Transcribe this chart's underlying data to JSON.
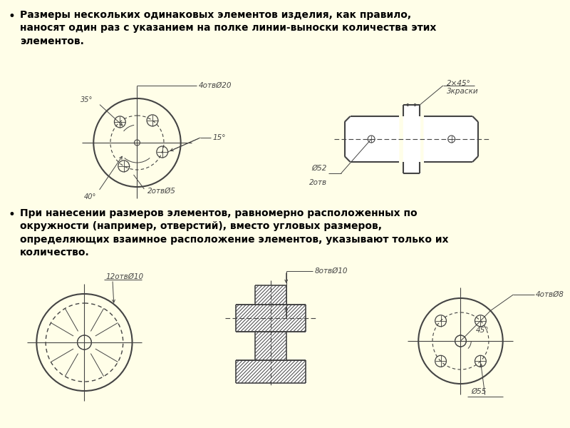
{
  "bg_color": "#fffee8",
  "text_color": "#000000",
  "drawing_color": "#444444",
  "bullet1": "Размеры нескольких одинаковых элементов изделия, как правило,\nнаносят один раз с указанием на полке линии-выноски количества этих\nэлементов.",
  "bullet2": "При нанесении размеров элементов, равномерно расположенных по\nокружности (например, отверстий), вместо угловых размеров,\nопределяющих взаимное расположение элементов, указывают только их\nколичество.",
  "label_4xD20": "4отвØ20",
  "label_2xD5": "2отвØ5",
  "label_15deg": "15°",
  "label_35deg": "35°",
  "label_2x45": "2×45°",
  "label_3paint": "3краски",
  "label_D52": "Ø52",
  "label_2otv": "2отв",
  "label_12xD10": "12отвØ10",
  "label_8xD10": "8отвØ10",
  "label_4xD8": "4отвØ8",
  "label_D55": "Ø55",
  "label_45deg_r": "45°",
  "label_40deg": "40°"
}
